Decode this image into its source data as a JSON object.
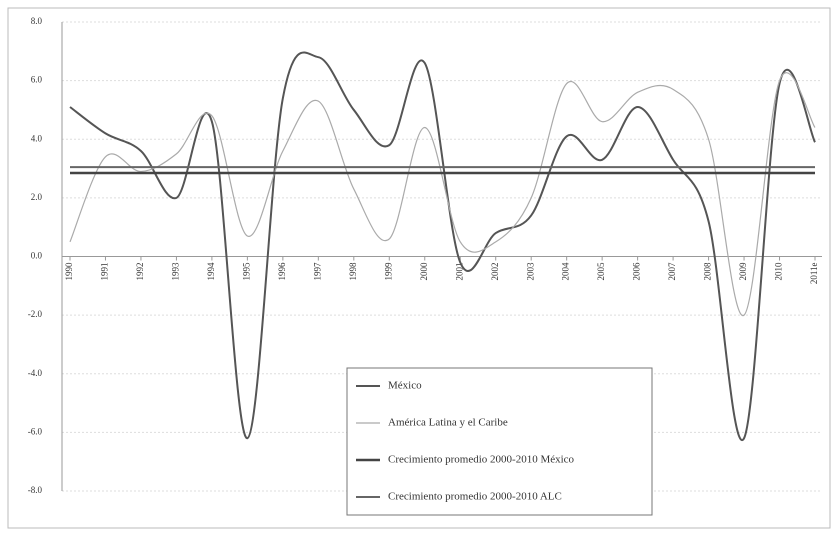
{
  "chart_data": {
    "type": "line",
    "categories": [
      "1990",
      "1991",
      "1992",
      "1993",
      "1994",
      "1995",
      "1996",
      "1997",
      "1998",
      "1999",
      "2000",
      "2001",
      "2002",
      "2003",
      "2004",
      "2005",
      "2006",
      "2007",
      "2008",
      "2009",
      "2010",
      "2011e"
    ],
    "series": [
      {
        "name": "México",
        "color": "#555555",
        "width": 2,
        "values": [
          5.1,
          4.2,
          3.6,
          2.0,
          4.6,
          -6.2,
          5.4,
          6.8,
          5.0,
          3.8,
          6.6,
          -0.2,
          0.8,
          1.4,
          4.1,
          3.3,
          5.1,
          3.3,
          1.2,
          -6.2,
          5.9,
          3.9
        ]
      },
      {
        "name": "América Latina y el Caribe",
        "color": "#aaaaaa",
        "width": 1.2,
        "values": [
          0.5,
          3.4,
          2.9,
          3.5,
          4.8,
          0.7,
          3.6,
          5.3,
          2.3,
          0.6,
          4.4,
          0.5,
          0.5,
          2.0,
          5.9,
          4.6,
          5.6,
          5.7,
          4.0,
          -2.0,
          6.0,
          4.4
        ]
      },
      {
        "name": "Crecimiento promedio 2000-2010 México",
        "color": "#444444",
        "width": 2.5,
        "values": [
          2.85,
          2.85,
          2.85,
          2.85,
          2.85,
          2.85,
          2.85,
          2.85,
          2.85,
          2.85,
          2.85,
          2.85,
          2.85,
          2.85,
          2.85,
          2.85,
          2.85,
          2.85,
          2.85,
          2.85,
          2.85,
          2.85
        ]
      },
      {
        "name": "Crecimiento promedio 2000-2010 ALC",
        "color": "#666666",
        "width": 2,
        "values": [
          3.05,
          3.05,
          3.05,
          3.05,
          3.05,
          3.05,
          3.05,
          3.05,
          3.05,
          3.05,
          3.05,
          3.05,
          3.05,
          3.05,
          3.05,
          3.05,
          3.05,
          3.05,
          3.05,
          3.05,
          3.05,
          3.05
        ]
      }
    ],
    "ylim": [
      -8,
      8
    ],
    "yticks": [
      {
        "value": -8,
        "label": "-8.0"
      },
      {
        "value": -6,
        "label": "-6.0"
      },
      {
        "value": -4,
        "label": "-4.0"
      },
      {
        "value": -2,
        "label": "-2.0"
      },
      {
        "value": 0,
        "label": "0.0"
      },
      {
        "value": 2,
        "label": "2.0"
      },
      {
        "value": 4,
        "label": "4.0"
      },
      {
        "value": 6,
        "label": "6.0"
      },
      {
        "value": 8,
        "label": "8.0"
      }
    ],
    "grid": true,
    "smooth": true
  }
}
